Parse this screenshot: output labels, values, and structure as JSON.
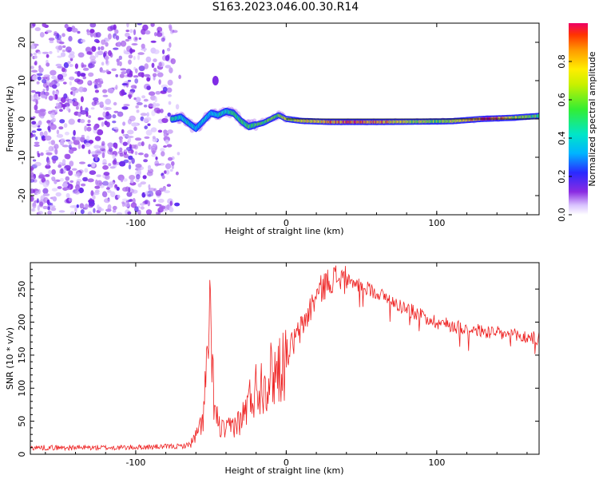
{
  "title": "S163.2023.046.00.30.R14",
  "chart_data": [
    {
      "type": "heatmap",
      "xlabel": "Height of straight line (km)",
      "ylabel": "Frequency (Hz)",
      "xlim": [
        -170,
        168
      ],
      "ylim": [
        -25,
        25
      ],
      "xticks": [
        -100,
        0,
        100
      ],
      "yticks": [
        -20,
        -10,
        0,
        10,
        20
      ],
      "colorbar": {
        "label": "Normalized spectral amplitude",
        "ticks": [
          "0.0",
          "0.2",
          "0.4",
          "0.6",
          "0.8"
        ],
        "range": [
          0,
          1
        ]
      },
      "noise_region_x": [
        -170,
        -75
      ],
      "ridge": [
        [
          -75,
          0.0
        ],
        [
          -70,
          0.5
        ],
        [
          -65,
          -1.0
        ],
        [
          -60,
          -2.5
        ],
        [
          -55,
          -0.5
        ],
        [
          -50,
          1.5
        ],
        [
          -45,
          1.0
        ],
        [
          -40,
          2.0
        ],
        [
          -35,
          1.5
        ],
        [
          -30,
          -0.5
        ],
        [
          -25,
          -2.0
        ],
        [
          -20,
          -1.5
        ],
        [
          -15,
          -1.0
        ],
        [
          -10,
          0.0
        ],
        [
          -5,
          1.0
        ],
        [
          0,
          0.0
        ],
        [
          10,
          -0.5
        ],
        [
          30,
          -0.8
        ],
        [
          60,
          -0.8
        ],
        [
          90,
          -0.7
        ],
        [
          110,
          -0.6
        ],
        [
          130,
          0.0
        ],
        [
          150,
          0.3
        ],
        [
          168,
          0.8
        ]
      ],
      "ridge_amplitude": [
        [
          -75,
          0.45
        ],
        [
          -65,
          0.4
        ],
        [
          -55,
          0.35
        ],
        [
          -40,
          0.45
        ],
        [
          -30,
          0.5
        ],
        [
          -20,
          0.55
        ],
        [
          -10,
          0.6
        ],
        [
          0,
          0.65
        ],
        [
          20,
          0.75
        ],
        [
          40,
          0.9
        ],
        [
          60,
          0.85
        ],
        [
          80,
          0.7
        ],
        [
          100,
          0.6
        ],
        [
          120,
          0.75
        ],
        [
          135,
          1.0
        ],
        [
          150,
          0.7
        ],
        [
          168,
          0.55
        ]
      ],
      "reference_line": {
        "x": [
          0,
          168
        ],
        "y": 0
      }
    },
    {
      "type": "line",
      "xlabel": "Height of straight line (km)",
      "ylabel": "SNR (10 * v/v)",
      "xlim": [
        -170,
        168
      ],
      "ylim": [
        0,
        290
      ],
      "xticks": [
        -100,
        0,
        100
      ],
      "yticks": [
        0,
        50,
        100,
        150,
        200,
        250
      ],
      "color": "#ee2222",
      "series": [
        {
          "x": [
            -170,
            -140,
            -110,
            -90,
            -70,
            -65,
            -62,
            -58,
            -55,
            -53,
            -51,
            -49,
            -47,
            -44,
            -40,
            -35,
            -30,
            -25,
            -20,
            -15,
            -10,
            -5,
            0,
            5,
            10,
            15,
            20,
            25,
            30,
            35,
            40,
            50,
            60,
            70,
            80,
            90,
            100,
            110,
            120,
            130,
            140,
            150,
            160,
            168
          ],
          "y": [
            10,
            10,
            10,
            11,
            12,
            14,
            20,
            35,
            60,
            120,
            200,
            120,
            60,
            40,
            35,
            45,
            50,
            80,
            100,
            110,
            120,
            130,
            150,
            170,
            190,
            215,
            240,
            255,
            265,
            268,
            262,
            255,
            245,
            232,
            220,
            210,
            200,
            195,
            190,
            186,
            183,
            180,
            177,
            175
          ]
        }
      ]
    }
  ]
}
